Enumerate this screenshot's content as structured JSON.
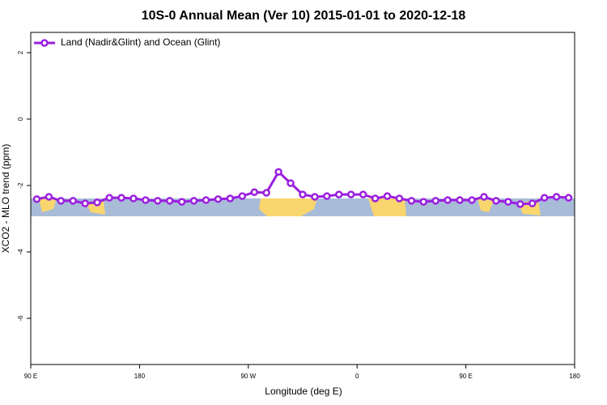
{
  "chart_data": {
    "type": "line",
    "title": "10S-0 Annual Mean (Ver 10)   2015-01-01 to 2020-12-18",
    "x_label": "Longitude (deg E)",
    "y_label": "XCO2 - MLO trend (ppm)",
    "xlim": [
      90,
      540
    ],
    "xticks": [
      {
        "value": 90,
        "label": "90 E"
      },
      {
        "value": 180,
        "label": "180"
      },
      {
        "value": 270,
        "label": "90 W"
      },
      {
        "value": 360,
        "label": "0"
      },
      {
        "value": 450,
        "label": "90 E"
      },
      {
        "value": 540,
        "label": "180"
      }
    ],
    "ylim": [
      -7.39,
      2.61
    ],
    "yticks": [
      2,
      0,
      -2,
      -4,
      -6
    ],
    "legend": "top-left",
    "x": [
      95,
      105,
      115,
      125,
      135,
      145,
      155,
      165,
      175,
      185,
      195,
      205,
      215,
      225,
      235,
      245,
      255,
      265,
      275,
      285,
      295,
      305,
      315,
      325,
      335,
      345,
      355,
      365,
      375,
      385,
      395,
      405,
      415,
      425,
      435,
      445,
      455,
      465,
      475,
      485,
      495,
      505,
      515,
      525,
      535
    ],
    "series": [
      {
        "name": "Land (Nadir&Glint) and Ocean (Glint)",
        "color": "#9b1fe0",
        "values": [
          -2.41,
          -2.34,
          -2.46,
          -2.46,
          -2.54,
          -2.51,
          -2.37,
          -2.37,
          -2.39,
          -2.44,
          -2.46,
          -2.46,
          -2.49,
          -2.46,
          -2.44,
          -2.41,
          -2.39,
          -2.32,
          -2.2,
          -2.22,
          -1.59,
          -1.93,
          -2.27,
          -2.34,
          -2.32,
          -2.27,
          -2.27,
          -2.27,
          -2.39,
          -2.32,
          -2.39,
          -2.46,
          -2.49,
          -2.46,
          -2.44,
          -2.44,
          -2.44,
          -2.34,
          -2.46,
          -2.49,
          -2.56,
          -2.54,
          -2.37,
          -2.34,
          -2.37
        ]
      }
    ]
  }
}
